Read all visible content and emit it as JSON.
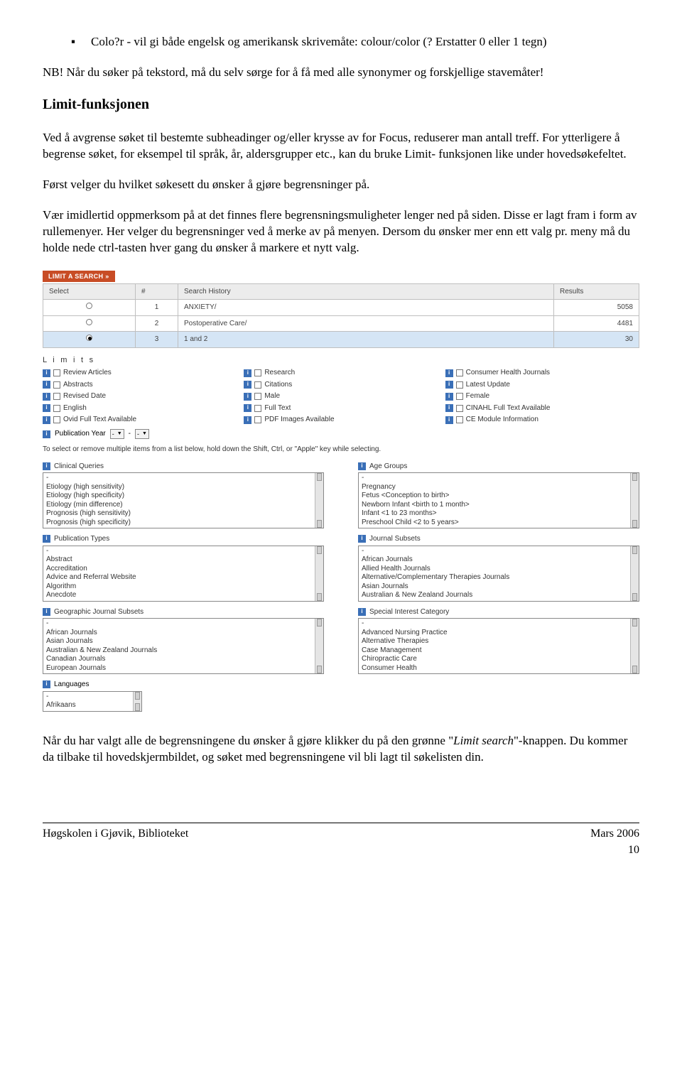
{
  "bullet": "Colo?r - vil gi både engelsk og amerikansk skrivemåte: colour/color (? Erstatter 0 eller 1 tegn)",
  "nb": "NB! Når du søker på tekstord, må du selv sørge for å få med alle synonymer og forskjellige stavemåter!",
  "h2": "Limit-funksjonen",
  "p1": "Ved å avgrense søket til bestemte subheadinger og/eller krysse av for Focus, reduserer man antall treff. For ytterligere å begrense søket, for eksempel til språk, år, aldersgrupper etc., kan du bruke Limit- funksjonen like under hovedsøkefeltet.",
  "p2": "Først velger du hvilket søkesett du ønsker å gjøre begrensninger på.",
  "p3": "Vær imidlertid oppmerksom på at det finnes flere begrensningsmuligheter lenger ned på siden. Disse er lagt fram i form av rullemenyer. Her velger du begrensninger ved å merke av på menyen. Dersom du ønsker mer enn ett valg pr. meny må du holde nede ctrl-tasten hver gang du ønsker å markere et nytt valg.",
  "p4a": "Når du har valgt alle de begrensningene du ønsker å gjøre klikker du på den grønne \"",
  "p4i": "Limit search",
  "p4b": "\"-knappen. Du kommer da tilbake til hovedskjermbildet, og søket med begrensningene vil bli lagt til søkelisten din.",
  "footer_left": "Høgskolen i Gjøvik, Biblioteket",
  "footer_right": "Mars 2006",
  "page_num": "10",
  "screenshot": {
    "button": "LIMIT A SEARCH »",
    "table": {
      "headers": [
        "Select",
        "#",
        "Search History",
        "Results"
      ],
      "rows": [
        {
          "sel": false,
          "num": "1",
          "hist": "ANXIETY/",
          "res": "5058"
        },
        {
          "sel": false,
          "num": "2",
          "hist": "Postoperative Care/",
          "res": "4481"
        },
        {
          "sel": true,
          "num": "3",
          "hist": "1 and 2",
          "res": "30"
        }
      ]
    },
    "limits_title": "L i m i t s",
    "limits_cols": [
      [
        "Review Articles",
        "Abstracts",
        "Revised Date",
        "English",
        "Ovid Full Text Available"
      ],
      [
        "Research",
        "Citations",
        "Male",
        "Full Text",
        "PDF Images Available"
      ],
      [
        "Consumer Health Journals",
        "Latest Update",
        "Female",
        "CINAHL Full Text Available",
        "CE Module Information"
      ]
    ],
    "pubyear_label": "Publication Year",
    "multinote": "To select or remove multiple items from a list below, hold down the Shift, Ctrl, or \"Apple\" key while selecting.",
    "multi": [
      {
        "label": "Clinical Queries",
        "items": [
          "-",
          "Etiology (high sensitivity)",
          "Etiology (high specificity)",
          "Etiology (min difference)",
          "Prognosis (high sensitivity)",
          "Prognosis (high specificity)"
        ]
      },
      {
        "label": "Age Groups",
        "items": [
          "-",
          "Pregnancy",
          "Fetus <Conception to birth>",
          "Newborn Infant <birth to 1 month>",
          "Infant <1 to 23 months>",
          "Preschool Child <2 to 5 years>"
        ]
      },
      {
        "label": "Publication Types",
        "items": [
          "-",
          "Abstract",
          "Accreditation",
          "Advice and Referral Website",
          "Algorithm",
          "Anecdote"
        ]
      },
      {
        "label": "Journal Subsets",
        "items": [
          "-",
          "African Journals",
          "Allied Health Journals",
          "Alternative/Complementary Therapies Journals",
          "Asian Journals",
          "Australian & New Zealand Journals"
        ]
      },
      {
        "label": "Geographic Journal Subsets",
        "items": [
          "-",
          "African Journals",
          "Asian Journals",
          "Australian & New Zealand Journals",
          "Canadian Journals",
          "European Journals"
        ]
      },
      {
        "label": "Special Interest Category",
        "items": [
          "-",
          "Advanced Nursing Practice",
          "Alternative Therapies",
          "Case Management",
          "Chiropractic Care",
          "Consumer Health"
        ]
      }
    ],
    "lang_label": "Languages",
    "lang_items": [
      "-",
      "Afrikaans"
    ]
  }
}
